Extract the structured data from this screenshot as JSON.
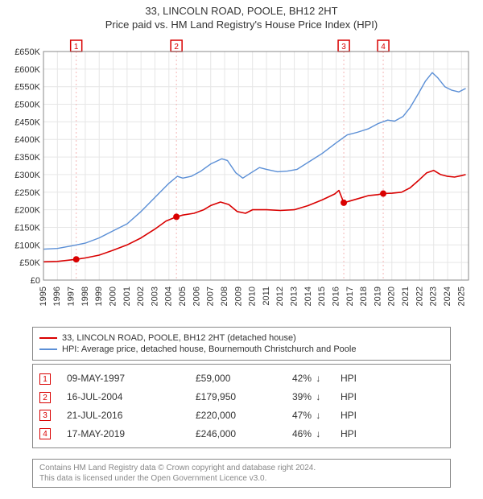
{
  "title_line1": "33, LINCOLN ROAD, POOLE, BH12 2HT",
  "title_line2": "Price paid vs. HM Land Registry's House Price Index (HPI)",
  "chart": {
    "type": "line",
    "background_color": "#ffffff",
    "plot_background_color": "#ffffff",
    "grid_color": "#e6e6e6",
    "border_color": "#888888",
    "xlim": [
      1995,
      2025.5
    ],
    "ylim": [
      0,
      650000
    ],
    "ytick_step": 50000,
    "yticks": [
      "£0",
      "£50K",
      "£100K",
      "£150K",
      "£200K",
      "£250K",
      "£300K",
      "£350K",
      "£400K",
      "£450K",
      "£500K",
      "£550K",
      "£600K",
      "£650K"
    ],
    "xticks": [
      1995,
      1996,
      1997,
      1998,
      1999,
      2000,
      2001,
      2002,
      2003,
      2004,
      2005,
      2006,
      2007,
      2008,
      2009,
      2010,
      2011,
      2012,
      2013,
      2014,
      2015,
      2016,
      2017,
      2018,
      2019,
      2020,
      2021,
      2022,
      2023,
      2024,
      2025
    ],
    "series": [
      {
        "name": "price_paid",
        "label": "33, LINCOLN ROAD, POOLE, BH12 2HT (detached house)",
        "color": "#d90000",
        "line_width": 1.6,
        "points": [
          [
            1995.0,
            52000
          ],
          [
            1996.0,
            53000
          ],
          [
            1997.35,
            59000
          ],
          [
            1998.0,
            63000
          ],
          [
            1999.0,
            71000
          ],
          [
            2000.0,
            85000
          ],
          [
            2001.0,
            100000
          ],
          [
            2002.0,
            120000
          ],
          [
            2003.0,
            145000
          ],
          [
            2003.8,
            168000
          ],
          [
            2004.54,
            179950
          ],
          [
            2005.0,
            185000
          ],
          [
            2005.8,
            190000
          ],
          [
            2006.5,
            200000
          ],
          [
            2007.0,
            212000
          ],
          [
            2007.7,
            222000
          ],
          [
            2008.3,
            215000
          ],
          [
            2008.9,
            195000
          ],
          [
            2009.5,
            190000
          ],
          [
            2010.0,
            200000
          ],
          [
            2011.0,
            200000
          ],
          [
            2012.0,
            198000
          ],
          [
            2013.0,
            200000
          ],
          [
            2014.0,
            212000
          ],
          [
            2015.0,
            228000
          ],
          [
            2015.9,
            245000
          ],
          [
            2016.2,
            255000
          ],
          [
            2016.55,
            220000
          ],
          [
            2017.0,
            225000
          ],
          [
            2017.7,
            233000
          ],
          [
            2018.3,
            240000
          ],
          [
            2019.0,
            243000
          ],
          [
            2019.38,
            246000
          ],
          [
            2020.0,
            247000
          ],
          [
            2020.7,
            250000
          ],
          [
            2021.3,
            262000
          ],
          [
            2021.9,
            283000
          ],
          [
            2022.5,
            305000
          ],
          [
            2023.0,
            312000
          ],
          [
            2023.5,
            300000
          ],
          [
            2024.0,
            295000
          ],
          [
            2024.5,
            293000
          ],
          [
            2025.0,
            297000
          ],
          [
            2025.3,
            300000
          ]
        ]
      },
      {
        "name": "hpi",
        "label": "HPI: Average price, detached house, Bournemouth Christchurch and Poole",
        "color": "#5b8fd6",
        "line_width": 1.4,
        "points": [
          [
            1995.0,
            88000
          ],
          [
            1996.0,
            90000
          ],
          [
            1997.0,
            97000
          ],
          [
            1998.0,
            105000
          ],
          [
            1999.0,
            120000
          ],
          [
            2000.0,
            140000
          ],
          [
            2001.0,
            160000
          ],
          [
            2002.0,
            195000
          ],
          [
            2003.0,
            235000
          ],
          [
            2004.0,
            275000
          ],
          [
            2004.6,
            295000
          ],
          [
            2005.0,
            290000
          ],
          [
            2005.6,
            295000
          ],
          [
            2006.3,
            310000
          ],
          [
            2007.0,
            330000
          ],
          [
            2007.8,
            345000
          ],
          [
            2008.2,
            340000
          ],
          [
            2008.8,
            305000
          ],
          [
            2009.3,
            290000
          ],
          [
            2009.9,
            305000
          ],
          [
            2010.5,
            320000
          ],
          [
            2011.0,
            315000
          ],
          [
            2011.8,
            308000
          ],
          [
            2012.5,
            310000
          ],
          [
            2013.2,
            315000
          ],
          [
            2014.0,
            335000
          ],
          [
            2015.0,
            360000
          ],
          [
            2016.0,
            390000
          ],
          [
            2016.8,
            413000
          ],
          [
            2017.5,
            420000
          ],
          [
            2018.3,
            430000
          ],
          [
            2019.0,
            445000
          ],
          [
            2019.7,
            455000
          ],
          [
            2020.2,
            452000
          ],
          [
            2020.8,
            465000
          ],
          [
            2021.3,
            490000
          ],
          [
            2021.9,
            530000
          ],
          [
            2022.4,
            565000
          ],
          [
            2022.9,
            590000
          ],
          [
            2023.3,
            575000
          ],
          [
            2023.8,
            550000
          ],
          [
            2024.3,
            540000
          ],
          [
            2024.8,
            535000
          ],
          [
            2025.3,
            545000
          ]
        ]
      }
    ],
    "sale_markers": [
      {
        "n": "1",
        "x": 1997.35,
        "y": 59000,
        "color": "#d90000"
      },
      {
        "n": "2",
        "x": 2004.54,
        "y": 179950,
        "color": "#d90000"
      },
      {
        "n": "3",
        "x": 2016.55,
        "y": 220000,
        "color": "#d90000"
      },
      {
        "n": "4",
        "x": 2019.38,
        "y": 246000,
        "color": "#d90000"
      }
    ],
    "marker_line_color": "#f4b6b6"
  },
  "legend": {
    "items": [
      {
        "color": "#d90000",
        "label": "33, LINCOLN ROAD, POOLE, BH12 2HT (detached house)"
      },
      {
        "color": "#5b8fd6",
        "label": "HPI: Average price, detached house, Bournemouth Christchurch and Poole"
      }
    ]
  },
  "transactions": [
    {
      "n": "1",
      "date": "09-MAY-1997",
      "price": "£59,000",
      "pct": "42%",
      "dir": "↓",
      "vs": "HPI"
    },
    {
      "n": "2",
      "date": "16-JUL-2004",
      "price": "£179,950",
      "pct": "39%",
      "dir": "↓",
      "vs": "HPI"
    },
    {
      "n": "3",
      "date": "21-JUL-2016",
      "price": "£220,000",
      "pct": "47%",
      "dir": "↓",
      "vs": "HPI"
    },
    {
      "n": "4",
      "date": "17-MAY-2019",
      "price": "£246,000",
      "pct": "46%",
      "dir": "↓",
      "vs": "HPI"
    }
  ],
  "footer": {
    "line1": "Contains HM Land Registry data © Crown copyright and database right 2024.",
    "line2": "This data is licensed under the Open Government Licence v3.0."
  }
}
